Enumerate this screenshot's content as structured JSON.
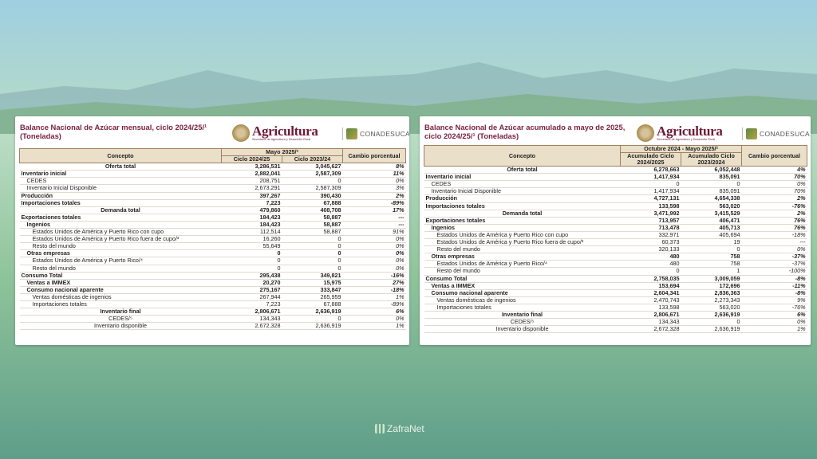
{
  "left": {
    "title": "Balance Nacional de Azúcar mensual, ciclo 2024/25/¹ (Toneladas)",
    "brand": {
      "agricultura": "Agricultura",
      "agri_sub": "Secretaría de Agricultura y Desarrollo Rural",
      "conadesuca": "CONADESUCA"
    },
    "headers": {
      "concepto": "Concepto",
      "period": "Mayo 2025/²",
      "col1": "Ciclo 2024/25",
      "col2": "Ciclo 2023/24",
      "cambio": "Cambio porcentual"
    },
    "rows": [
      [
        "Oferta total",
        "3,286,531",
        "3,045,627",
        "8%"
      ],
      [
        "Inventario inicial",
        "2,882,041",
        "2,587,309",
        "11%"
      ],
      [
        "CEDES",
        "208,751",
        "0",
        "0%"
      ],
      [
        "Inventario Inicial Disponible",
        "2,673,291",
        "2,587,309",
        "3%"
      ],
      [
        "Producción",
        "397,267",
        "390,430",
        "2%"
      ],
      [
        "Importaciones totales",
        "7,223",
        "67,888",
        "-89%"
      ],
      [
        "Demanda total",
        "479,860",
        "408,708",
        "17%"
      ],
      [
        "Exportaciones totales",
        "184,423",
        "58,887",
        "---"
      ],
      [
        "Ingenios",
        "184,423",
        "58,887",
        "---"
      ],
      [
        "Estados Unidos de América y Puerto Rico con cupo",
        "112,514",
        "58,887",
        "91%"
      ],
      [
        "Estados Unidos de América y Puerto Rico fuera de cupo/³",
        "16,260",
        "0",
        "0%"
      ],
      [
        "Resto del mundo",
        "55,649",
        "0",
        "0%"
      ],
      [
        "Otras empresas",
        "0",
        "0",
        "0%"
      ],
      [
        "Estados Unidos de América y Puerto Rico/⁴",
        "0",
        "0",
        "0%"
      ],
      [
        "Resto del mundo",
        "0",
        "0",
        "0%"
      ],
      [
        "Consumo Total",
        "295,438",
        "349,821",
        "-16%"
      ],
      [
        "Ventas a IMMEX",
        "20,270",
        "15,975",
        "27%"
      ],
      [
        "Consumo nacional aparente",
        "275,167",
        "333,847",
        "-18%"
      ],
      [
        "Ventas domésticas de ingenios",
        "267,944",
        "265,959",
        "1%"
      ],
      [
        "Importaciones totales",
        "7,223",
        "67,888",
        "-89%"
      ],
      [
        "Inventario final",
        "2,806,671",
        "2,636,919",
        "6%"
      ],
      [
        "CEDES/⁵",
        "134,343",
        "0",
        "0%"
      ],
      [
        "Inventario disponible",
        "2,672,328",
        "2,636,919",
        "1%"
      ]
    ]
  },
  "right": {
    "title": "Balance Nacional de Azúcar acumulado a mayo de 2025, ciclo 2024/25/¹ (Toneladas)",
    "brand": {
      "agricultura": "Agricultura",
      "agri_sub": "Secretaría de Agricultura y Desarrollo Rural",
      "conadesuca": "CONADESUCA"
    },
    "headers": {
      "concepto": "Concepto",
      "period": "Octubre 2024 - Mayo 2025/²",
      "col1": "Acumulado Ciclo 2024/2025",
      "col2": "Acumulado Ciclo 2023/2024",
      "cambio": "Cambio porcentual"
    },
    "rows": [
      [
        "Oferta total",
        "6,278,663",
        "6,052,448",
        "4%"
      ],
      [
        "Inventario inicial",
        "1,417,934",
        "835,091",
        "70%"
      ],
      [
        "CEDES",
        "0",
        "0",
        "0%"
      ],
      [
        "Inventario Inicial Disponible",
        "1,417,934",
        "835,091",
        "70%"
      ],
      [
        "Producción",
        "4,727,131",
        "4,654,338",
        "2%"
      ],
      [
        "Importaciones totales",
        "133,598",
        "563,020",
        "-76%"
      ],
      [
        "Demanda total",
        "3,471,992",
        "3,415,529",
        "2%"
      ],
      [
        "Exportaciones totales",
        "713,957",
        "406,471",
        "76%"
      ],
      [
        "Ingenios",
        "713,478",
        "405,713",
        "76%"
      ],
      [
        "Estados Unidos de América y Puerto Rico con cupo",
        "332,971",
        "405,694",
        "-18%"
      ],
      [
        "Estados Unidos de América y Puerto Rico fuera de cupo/³",
        "60,373",
        "19",
        "---"
      ],
      [
        "Resto del mundo",
        "320,133",
        "0",
        "0%"
      ],
      [
        "Otras empresas",
        "480",
        "758",
        "-37%"
      ],
      [
        "Estados Unidos de América y Puerto Rico/⁴",
        "480",
        "758",
        "-37%"
      ],
      [
        "Resto del mundo",
        "0",
        "1",
        "-100%"
      ],
      [
        "Consumo Total",
        "2,758,035",
        "3,009,059",
        "-8%"
      ],
      [
        "Ventas a IMMEX",
        "153,694",
        "172,696",
        "-11%"
      ],
      [
        "Consumo nacional aparente",
        "2,604,341",
        "2,836,363",
        "-8%"
      ],
      [
        "Ventas domésticas de ingenios",
        "2,470,743",
        "2,273,343",
        "9%"
      ],
      [
        "Importaciones totales",
        "133,598",
        "563,020",
        "-76%"
      ],
      [
        "Inventario final",
        "2,806,671",
        "2,636,919",
        "6%"
      ],
      [
        "CEDES/⁵",
        "134,343",
        "0",
        "0%"
      ],
      [
        "Inventario disponible",
        "2,672,328",
        "2,636,919",
        "1%"
      ]
    ]
  },
  "credit": "ZafraNet"
}
